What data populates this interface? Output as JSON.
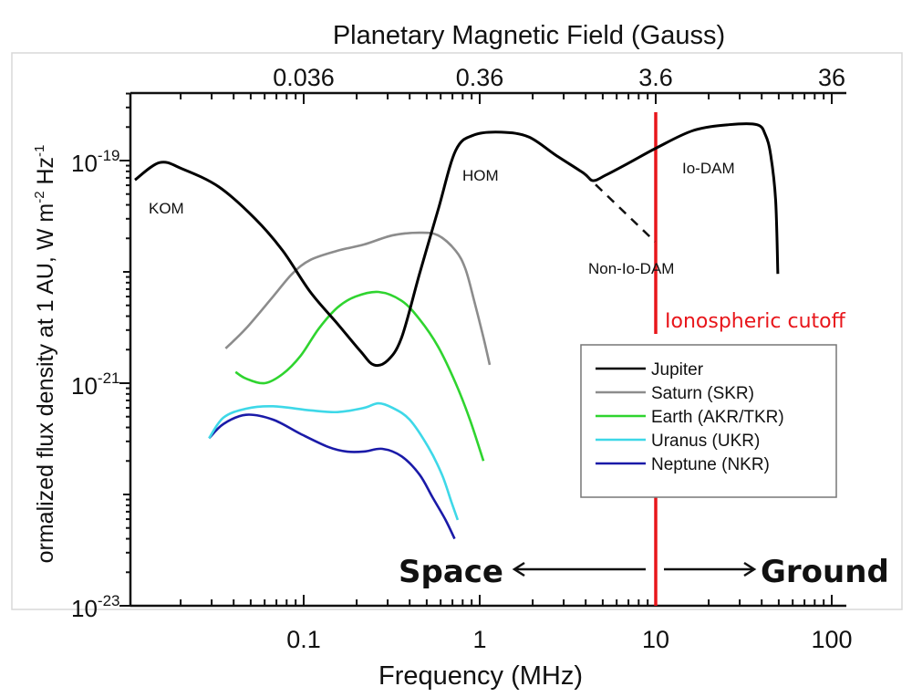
{
  "chart_data": {
    "type": "line",
    "xlabel": "Frequency (MHz)",
    "top_xlabel": "Planetary Magnetic Field (Gauss)",
    "ylabel": "ormalized flux density at 1 AU, W m",
    "ylabel_parts": {
      "m_exp": "-2",
      "hz": " Hz",
      "hz_exp": "-1"
    },
    "x_scale": "log",
    "y_scale": "log",
    "xlim": [
      0.0105,
      120
    ],
    "ylim": [
      1e-23,
      4e-19
    ],
    "x_ticks": [
      {
        "value": 0.1,
        "label": "0.1"
      },
      {
        "value": 1,
        "label": "1"
      },
      {
        "value": 10,
        "label": "10"
      },
      {
        "value": 100,
        "label": "100"
      }
    ],
    "top_ticks": [
      {
        "freq": 0.1,
        "label": "0.036"
      },
      {
        "freq": 1,
        "label": "0.36"
      },
      {
        "freq": 10,
        "label": "3.6"
      },
      {
        "freq": 100,
        "label": "36"
      }
    ],
    "y_ticks": [
      {
        "value": 1e-19,
        "base": "10",
        "exp": "-19"
      },
      {
        "value": 1e-21,
        "base": "10",
        "exp": "-21"
      },
      {
        "value": 1e-23,
        "base": "10",
        "exp": "-23"
      }
    ],
    "series": [
      {
        "name": "Jupiter",
        "color": "#000000",
        "x": [
          0.011,
          0.0152,
          0.0205,
          0.033,
          0.053,
          0.076,
          0.109,
          0.156,
          0.21,
          0.25,
          0.3,
          0.36,
          0.455,
          0.58,
          0.73,
          0.93,
          1.33,
          1.9,
          2.7,
          3.9,
          4.4,
          5.2,
          7.1,
          10.1,
          16.3,
          26,
          37.6,
          42,
          45,
          48,
          49.4
        ],
        "y": [
          6.7e-20,
          9.6e-20,
          8.4e-20,
          5.8e-20,
          3e-20,
          1.55e-20,
          6.6e-21,
          3.4e-21,
          1.94e-21,
          1.46e-21,
          1.6e-21,
          2.57e-21,
          9.6e-21,
          3.6e-20,
          1.23e-19,
          1.7e-19,
          1.8e-19,
          1.63e-19,
          1.12e-19,
          7.7e-20,
          6.6e-20,
          7.4e-20,
          9.6e-20,
          1.3e-19,
          1.86e-19,
          2.1e-19,
          2.1e-19,
          1.7e-19,
          1.12e-19,
          4.4e-20,
          9.6e-21
        ]
      },
      {
        "name": "Saturn (SKR)",
        "color": "#8c8c8c",
        "x": [
          0.036,
          0.047,
          0.067,
          0.086,
          0.109,
          0.156,
          0.22,
          0.32,
          0.455,
          0.58,
          0.73,
          0.83,
          0.93,
          1.05,
          1.14
        ],
        "y": [
          2.05e-21,
          3.1e-21,
          6e-21,
          9.6e-21,
          1.28e-20,
          1.55e-20,
          1.76e-20,
          2.13e-20,
          2.25e-20,
          2.13e-20,
          1.55e-20,
          1.06e-20,
          5.5e-21,
          2.57e-21,
          1.46e-21
        ]
      },
      {
        "name": "Earth (AKR/TKR)",
        "color": "#2fd42f",
        "x": [
          0.041,
          0.047,
          0.06,
          0.076,
          0.096,
          0.122,
          0.156,
          0.197,
          0.266,
          0.36,
          0.455,
          0.58,
          0.73,
          0.88,
          1.05
        ],
        "y": [
          1.26e-21,
          1.1e-21,
          1e-21,
          1.21e-21,
          1.76e-21,
          3.1e-21,
          4.8e-21,
          6e-21,
          6.6e-21,
          5.5e-21,
          3.75e-21,
          2.13e-21,
          1e-21,
          4.7e-22,
          2e-22
        ]
      },
      {
        "name": "Uranus (UKR)",
        "color": "#3ed8e8",
        "x": [
          0.029,
          0.035,
          0.047,
          0.067,
          0.109,
          0.156,
          0.22,
          0.266,
          0.32,
          0.4,
          0.51,
          0.61,
          0.69,
          0.75
        ],
        "y": [
          3.2e-22,
          4.9e-22,
          5.9e-22,
          6.2e-22,
          5.7e-22,
          5.5e-22,
          6e-22,
          6.6e-22,
          6e-22,
          4.7e-22,
          2.67e-22,
          1.51e-22,
          8.6e-23,
          5.9e-23
        ]
      },
      {
        "name": "Neptune (NKR)",
        "color": "#1a1aa8",
        "x": [
          0.029,
          0.035,
          0.047,
          0.067,
          0.096,
          0.138,
          0.175,
          0.22,
          0.28,
          0.36,
          0.455,
          0.54,
          0.64,
          0.72
        ],
        "y": [
          3.2e-22,
          4.3e-22,
          5.2e-22,
          4.7e-22,
          3.5e-22,
          2.67e-22,
          2.43e-22,
          2.43e-22,
          2.57e-22,
          2.2e-22,
          1.51e-22,
          9.4e-23,
          5.9e-23,
          4e-23
        ]
      }
    ],
    "dashed_extension": {
      "name": "Non-Io-DAM",
      "x": [
        3.9,
        9.9
      ],
      "y": [
        7.7e-20,
        1.87e-20
      ]
    },
    "annotations": [
      {
        "text": "KOM",
        "x": 0.016,
        "y": 3.3e-20
      },
      {
        "text": "HOM",
        "x": 1.05,
        "y": 6.6e-20
      },
      {
        "text": "Io-DAM",
        "x": 24,
        "y": 8e-20
      },
      {
        "text": "Non-Io-DAM",
        "x": 8.5,
        "y": 5.8e-21
      }
    ],
    "cutoff": {
      "x": 10,
      "label": "Ionospheric cutoff",
      "color": "#e8161b"
    },
    "direction_labels": {
      "left": "Space",
      "right": "Ground"
    },
    "legend": "center-right",
    "grid": false
  }
}
